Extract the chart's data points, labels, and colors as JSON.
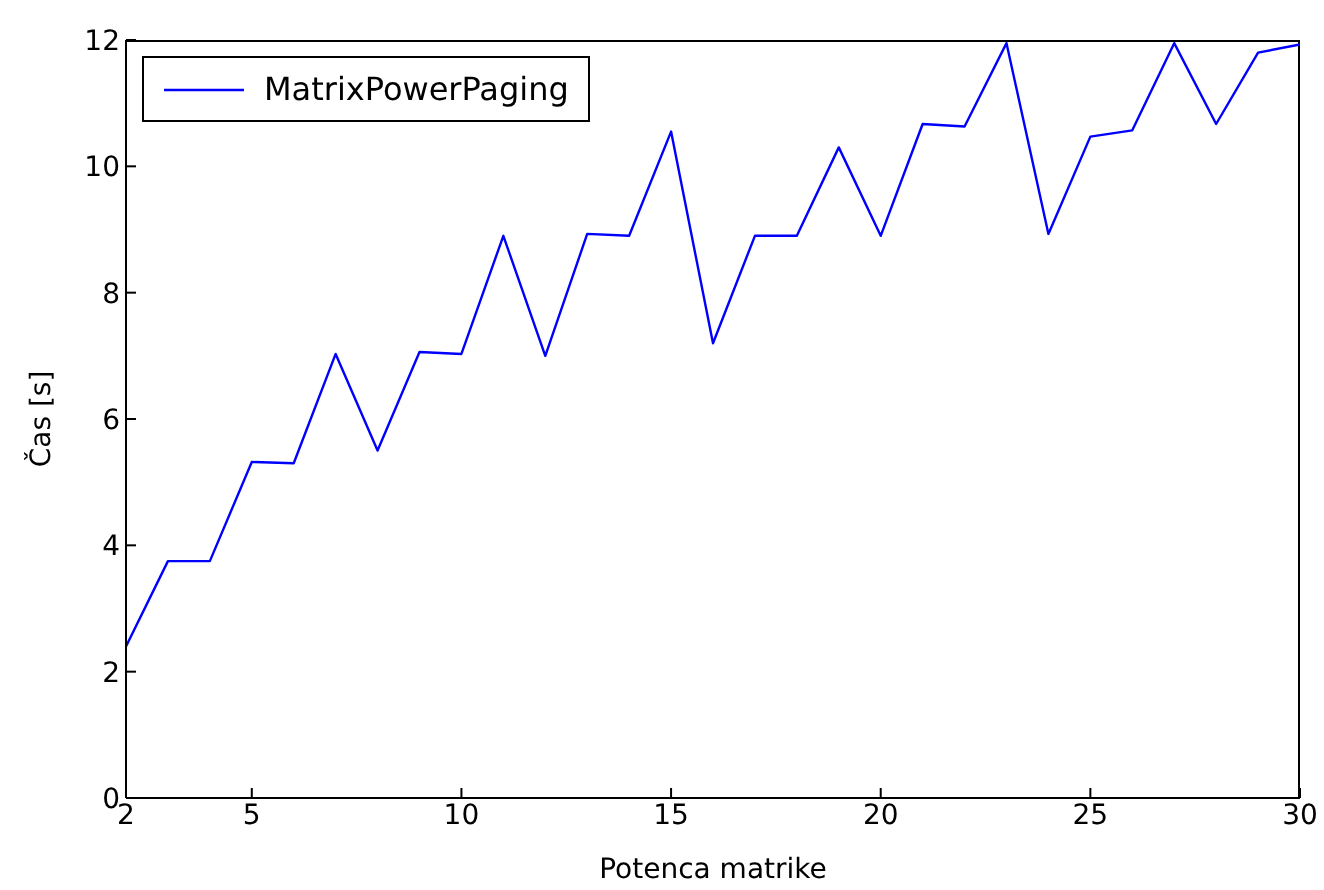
{
  "chart_data": {
    "type": "line",
    "xlabel": "Potenca matrike",
    "ylabel": "Čas [s]",
    "x": [
      2,
      3,
      4,
      5,
      6,
      7,
      8,
      9,
      10,
      11,
      12,
      13,
      14,
      15,
      16,
      17,
      18,
      19,
      20,
      21,
      22,
      23,
      24,
      25,
      26,
      27,
      28,
      29,
      30
    ],
    "series": [
      {
        "name": "MatrixPowerPaging",
        "color": "#0000ff",
        "values": [
          2.4,
          3.75,
          3.75,
          5.32,
          5.3,
          7.03,
          5.5,
          7.06,
          7.03,
          8.9,
          7.0,
          8.93,
          8.9,
          10.55,
          7.2,
          8.9,
          8.9,
          10.3,
          8.9,
          10.67,
          10.63,
          11.95,
          8.93,
          10.47,
          10.57,
          11.95,
          10.67,
          11.8,
          11.93
        ]
      }
    ],
    "xlim": [
      2,
      30
    ],
    "xticks": [
      2,
      5,
      10,
      15,
      20,
      25,
      30
    ],
    "ylim": [
      0,
      12
    ],
    "yticks": [
      0,
      2,
      4,
      6,
      8,
      10,
      12
    ],
    "grid": false,
    "legend": "top left",
    "marker": "none",
    "line_style": "solid"
  }
}
